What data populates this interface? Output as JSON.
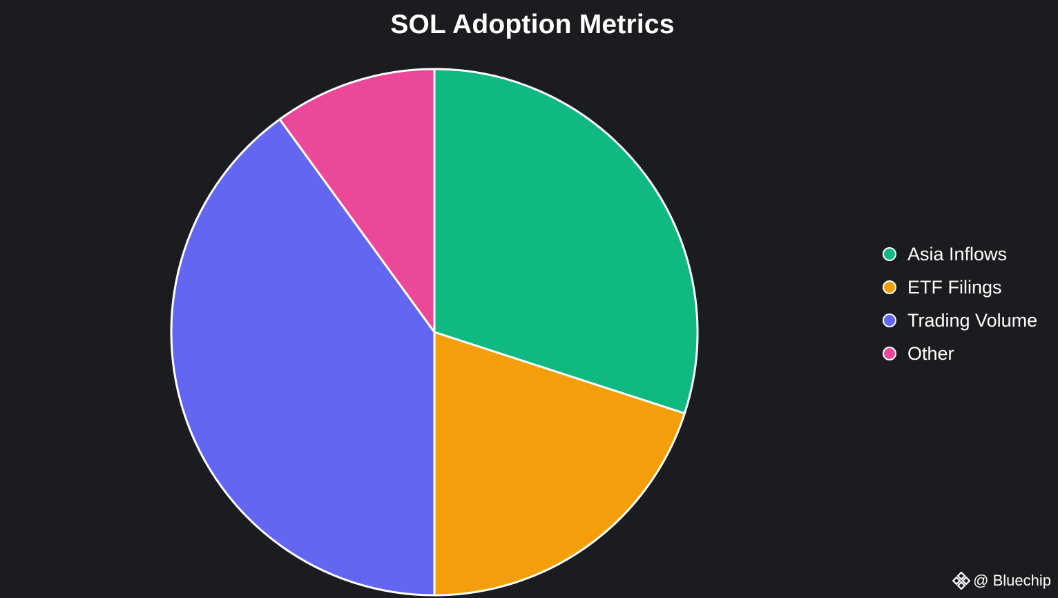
{
  "chart_data": {
    "type": "pie",
    "title": "SOL Adoption Metrics",
    "categories": [
      "Asia Inflows",
      "ETF Filings",
      "Trading Volume",
      "Other"
    ],
    "values": [
      30,
      20,
      40,
      10
    ],
    "colors": [
      "#10b981",
      "#f59e0b",
      "#6366f1",
      "#ec4899"
    ],
    "slice_border_color": "#ffffff",
    "start_angle_deg": 0,
    "direction": "clockwise",
    "legend_position": "right"
  },
  "watermark": {
    "text": "@ Bluechip",
    "icon": "diamond-logo-icon"
  }
}
